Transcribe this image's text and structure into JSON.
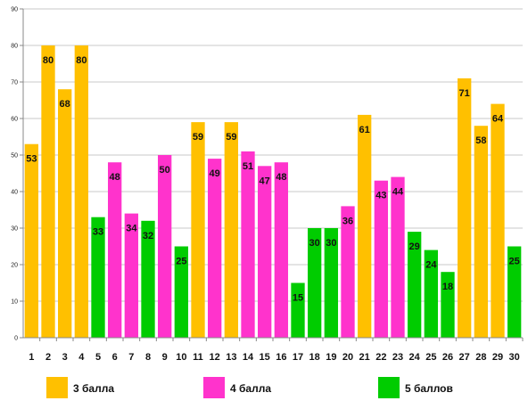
{
  "chart_data": {
    "type": "bar",
    "categories": [
      "1",
      "2",
      "3",
      "4",
      "5",
      "6",
      "7",
      "8",
      "9",
      "10",
      "11",
      "12",
      "13",
      "14",
      "15",
      "16",
      "17",
      "18",
      "19",
      "20",
      "21",
      "22",
      "23",
      "24",
      "25",
      "26",
      "27",
      "28",
      "29",
      "30"
    ],
    "values": [
      53,
      80,
      68,
      80,
      33,
      48,
      34,
      32,
      50,
      25,
      59,
      49,
      59,
      51,
      47,
      48,
      15,
      30,
      30,
      36,
      61,
      43,
      44,
      29,
      24,
      18,
      71,
      58,
      64,
      25
    ],
    "groups": [
      "3",
      "3",
      "3",
      "3",
      "5",
      "4",
      "4",
      "5",
      "4",
      "5",
      "3",
      "4",
      "3",
      "4",
      "4",
      "4",
      "5",
      "5",
      "5",
      "4",
      "3",
      "4",
      "4",
      "5",
      "5",
      "5",
      "3",
      "3",
      "3",
      "5"
    ],
    "ylim": [
      0,
      90
    ],
    "yticks": [
      0,
      10,
      20,
      30,
      40,
      50,
      60,
      70,
      80,
      90
    ],
    "grid": true,
    "legend_position": "bottom",
    "legend": [
      {
        "key": "3",
        "label": "3 балла",
        "color": "#FFC000"
      },
      {
        "key": "4",
        "label": "4 балла",
        "color": "#FF33CC"
      },
      {
        "key": "5",
        "label": "5 баллов",
        "color": "#00CC00"
      }
    ]
  }
}
